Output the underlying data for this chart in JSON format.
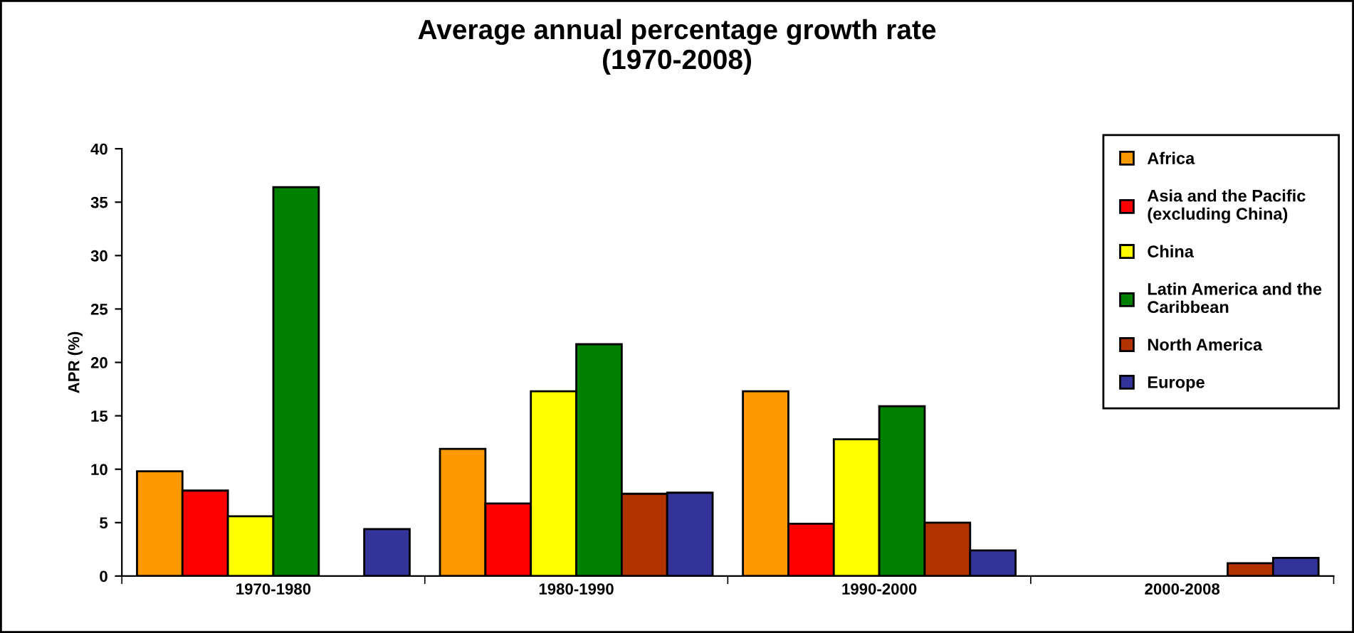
{
  "chart_data": {
    "type": "bar",
    "title": "Average annual percentage growth rate\n(1970-2008)",
    "ylabel": "APR (%)",
    "categories": [
      "1970-1980",
      "1980-1990",
      "1990-2000",
      "2000-2008"
    ],
    "series": [
      {
        "name": "Africa",
        "color": "#ff9900",
        "values": [
          9.8,
          11.9,
          17.3,
          null
        ]
      },
      {
        "name": "Asia and the Pacific\n(excluding China)",
        "color": "#ff0000",
        "values": [
          8.0,
          6.8,
          4.9,
          null
        ]
      },
      {
        "name": "China",
        "color": "#ffff00",
        "values": [
          5.6,
          17.3,
          12.8,
          null
        ]
      },
      {
        "name": "Latin America and the\nCaribbean",
        "color": "#008000",
        "values": [
          36.4,
          21.7,
          15.9,
          null
        ]
      },
      {
        "name": "North America",
        "color": "#b33300",
        "values": [
          null,
          7.7,
          5.0,
          1.2
        ]
      },
      {
        "name": "Europe",
        "color": "#333399",
        "values": [
          4.4,
          7.8,
          2.4,
          1.7
        ]
      }
    ],
    "ylim": [
      0,
      40
    ],
    "yticks": [
      0,
      5,
      10,
      15,
      20,
      25,
      30,
      35,
      40
    ],
    "grid": false,
    "legend": "right"
  }
}
